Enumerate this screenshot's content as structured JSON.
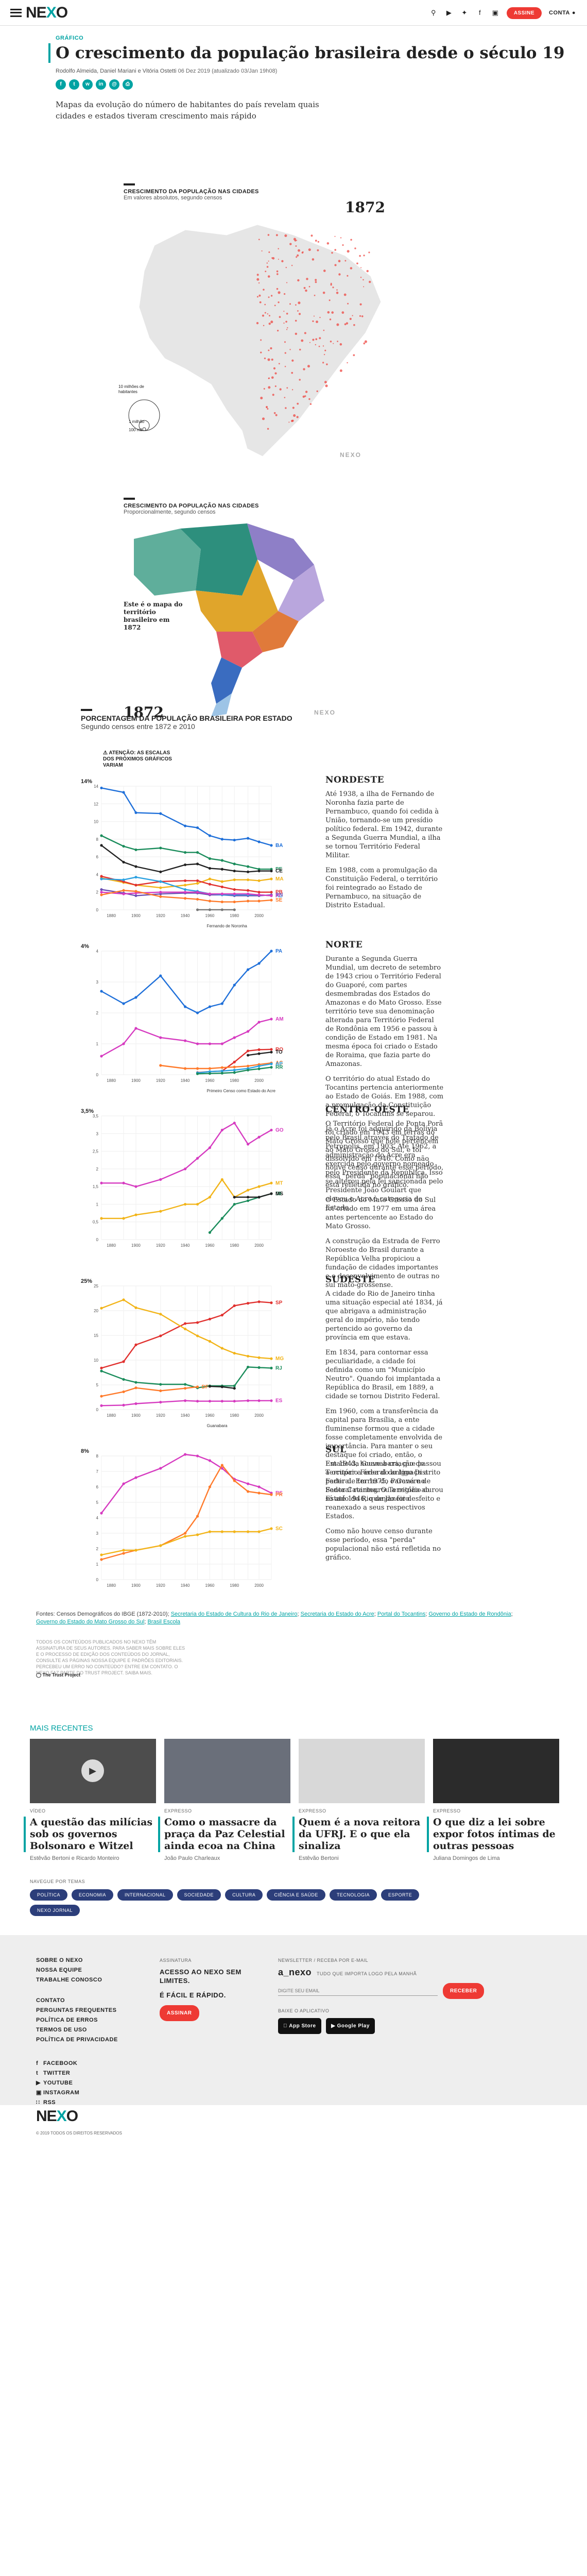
{
  "header": {
    "logo": "NEXO",
    "subscribe": "ASSINE",
    "account": "CONTA"
  },
  "article": {
    "kicker": "GRÁFICO",
    "title": "O crescimento da população brasileira desde o século 19",
    "authors": "Rodolfo Almeida, Daniel Mariani e Vitória Ostetti",
    "date": "06 Dez 2019",
    "updated": "(atualizado 03/Jan 19h08)",
    "lead": "Mapas da evolução do número de habitantes do país revelam quais cidades e estados tiveram crescimento mais rápido"
  },
  "map1": {
    "title": "CRESCIMENTO DA POPULAÇÃO NAS CIDADES",
    "subtitle": "Em valores absolutos, segundo censos",
    "year": "1872",
    "legend": [
      "10 milhões de habitantes",
      "1 milhão",
      "100 mil"
    ],
    "watermark": "NEXO"
  },
  "map2": {
    "title": "CRESCIMENTO DA POPULAÇÃO NAS CIDADES",
    "subtitle": "Proporcionalmente, segundo censos",
    "note": "Este é o mapa do território brasileiro em 1872",
    "year": "1872",
    "watermark": "NEXO",
    "colors": [
      "#5fae9b",
      "#2d8f7d",
      "#8e7fc7",
      "#b9a6dd",
      "#e0a52b",
      "#e07a3a",
      "#e05a6a",
      "#3a6cc0",
      "#9dc4e6"
    ]
  },
  "section": {
    "title": "PORCENTAGEM DA POPULAÇÃO BRASILEIRA POR ESTADO",
    "subtitle": "Segundo censos entre 1872 e 2010",
    "warning": "ATENÇÃO: AS ESCALAS DOS PRÓXIMOS GRÁFICOS VARIAM"
  },
  "chart_data": [
    {
      "type": "line",
      "title": "NORDESTE",
      "x": [
        1872,
        1890,
        1900,
        1920,
        1940,
        1950,
        1960,
        1970,
        1980,
        1991,
        2000,
        2010
      ],
      "ylim": [
        0,
        14
      ],
      "yticks": [
        0,
        2,
        4,
        6,
        8,
        10,
        12,
        14
      ],
      "ymax_label": "14%",
      "series": [
        {
          "name": "BA",
          "color": "#1e6fd9",
          "values": [
            13.8,
            13.3,
            11.0,
            10.9,
            9.5,
            9.3,
            8.4,
            8.0,
            7.9,
            8.1,
            7.7,
            7.3
          ]
        },
        {
          "name": "PE",
          "color": "#1a8c5b",
          "values": [
            8.4,
            7.2,
            6.8,
            7.0,
            6.5,
            6.5,
            5.8,
            5.6,
            5.2,
            4.9,
            4.6,
            4.6
          ]
        },
        {
          "name": "CE",
          "color": "#222222",
          "values": [
            7.3,
            5.4,
            4.9,
            4.3,
            5.1,
            5.2,
            4.7,
            4.6,
            4.4,
            4.3,
            4.4,
            4.4
          ]
        },
        {
          "name": "MA",
          "color": "#f2b418",
          "values": [
            3.6,
            3.1,
            2.8,
            2.5,
            2.8,
            3.0,
            3.5,
            3.2,
            3.4,
            3.4,
            3.3,
            3.5
          ]
        },
        {
          "name": "PB",
          "color": "#e0302e",
          "values": [
            3.8,
            3.2,
            2.8,
            3.2,
            3.3,
            3.3,
            2.9,
            2.6,
            2.3,
            2.2,
            2.0,
            2.0
          ]
        },
        {
          "name": "RN",
          "color": "#6b4fb3",
          "values": [
            2.3,
            1.9,
            1.6,
            1.8,
            1.9,
            1.9,
            1.7,
            1.7,
            1.6,
            1.6,
            1.6,
            1.7
          ]
        },
        {
          "name": "AL",
          "color": "#2aa0e0",
          "values": [
            3.5,
            3.4,
            3.7,
            3.2,
            2.3,
            2.1,
            1.8,
            1.7,
            1.7,
            1.7,
            1.7,
            1.6
          ]
        },
        {
          "name": "PI",
          "color": "#d63ac0",
          "values": [
            2.0,
            1.8,
            1.9,
            2.0,
            2.0,
            2.0,
            1.8,
            1.8,
            1.8,
            1.8,
            1.7,
            1.6
          ]
        },
        {
          "name": "SE",
          "color": "#ff7a2a",
          "values": [
            1.7,
            2.2,
            2.1,
            1.5,
            1.3,
            1.2,
            1.0,
            0.9,
            0.9,
            1.0,
            1.0,
            1.1
          ]
        },
        {
          "name": "Fernando de Noronha",
          "color": "#777777",
          "values": [
            null,
            null,
            null,
            null,
            null,
            0.01,
            0.01,
            0.01,
            0.01,
            null,
            null,
            null
          ]
        }
      ],
      "annotation": "Fernando de Noronha",
      "text": [
        "Até 1938, a ilha de Fernando de Noronha fazia parte de Pernambuco, quando foi cedida à União, tornando-se um presídio político federal. Em 1942, durante a Segunda Guerra Mundial, a ilha se tornou Território Federal Militar.",
        "Em 1988, com a promulgação da Constituição Federal, o território foi reintegrado ao Estado de Pernambuco, na situação de Distrito Estadual."
      ]
    },
    {
      "type": "line",
      "title": "NORTE",
      "x": [
        1872,
        1890,
        1900,
        1920,
        1940,
        1950,
        1960,
        1970,
        1980,
        1991,
        2000,
        2010
      ],
      "ylim": [
        0,
        4
      ],
      "yticks": [
        0,
        1,
        2,
        3,
        4
      ],
      "ymax_label": "4%",
      "series": [
        {
          "name": "PA",
          "color": "#1e6fd9",
          "values": [
            2.7,
            2.3,
            2.5,
            3.2,
            2.2,
            2.0,
            2.2,
            2.3,
            2.9,
            3.4,
            3.6,
            4.0
          ]
        },
        {
          "name": "AM",
          "color": "#d63ac0",
          "values": [
            0.6,
            1.0,
            1.5,
            1.2,
            1.1,
            1.0,
            1.0,
            1.0,
            1.2,
            1.4,
            1.7,
            1.8
          ]
        },
        {
          "name": "RO",
          "color": "#e0302e",
          "values": [
            null,
            null,
            null,
            null,
            null,
            0.07,
            0.1,
            0.12,
            0.41,
            0.77,
            0.81,
            0.82
          ]
        },
        {
          "name": "TO",
          "color": "#222222",
          "values": [
            null,
            null,
            null,
            null,
            null,
            null,
            null,
            null,
            null,
            0.63,
            0.68,
            0.73
          ]
        },
        {
          "name": "AC",
          "color": "#ff7a2a",
          "values": [
            null,
            null,
            null,
            0.3,
            0.2,
            0.2,
            0.2,
            0.23,
            0.25,
            0.28,
            0.33,
            0.38
          ]
        },
        {
          "name": "AP",
          "color": "#2aa0e0",
          "values": [
            null,
            null,
            null,
            null,
            null,
            0.06,
            0.1,
            0.12,
            0.15,
            0.2,
            0.28,
            0.35
          ]
        },
        {
          "name": "RR",
          "color": "#1a8c5b",
          "values": [
            null,
            null,
            null,
            null,
            null,
            0.03,
            0.04,
            0.05,
            0.07,
            0.15,
            0.19,
            0.24
          ]
        }
      ],
      "annotation": "Primeiro Censo como Estado do Acre",
      "text": [
        "Durante a Segunda Guerra Mundial, um decreto de setembro de 1943 criou o Território Federal do Guaporé, com partes desmembradas dos Estados do Amazonas e do Mato Grosso. Esse território teve sua denominação alterada para Território Federal de Rondônia em 1956 e passou à condição de Estado em 1981. Na mesma época foi criado o Estado de Roraima, que fazia parte do Amazonas.",
        "O território do atual Estado do Tocantins pertencia anteriormente ao Estado de Goiás. Em 1988, com a promulgação da Constituição Federal, o Tocantins se separou.",
        "Já o Acre foi adquirido da Bolívia pelo Brasil através do Tratado de Petrópolis, em 1903. Até 1962, a administração do Acre era exercida pelo governo nomeado pelo Presidente da República. Isso se alterou pela lei sancionada pelo Presidente João Goulart que elevou o Acre à categoria de Estado."
      ]
    },
    {
      "type": "line",
      "title": "CENTRO-OESTE",
      "x": [
        1872,
        1890,
        1900,
        1920,
        1940,
        1950,
        1960,
        1970,
        1980,
        1991,
        2000,
        2010
      ],
      "ylim": [
        0,
        3.5
      ],
      "yticks": [
        0,
        0.5,
        1,
        1.5,
        2,
        2.5,
        3,
        3.5
      ],
      "ymax_label": "3,5%",
      "series": [
        {
          "name": "GO",
          "color": "#d63ac0",
          "values": [
            1.6,
            1.6,
            1.5,
            1.7,
            2.0,
            2.3,
            2.6,
            3.1,
            3.3,
            2.7,
            2.9,
            3.1
          ]
        },
        {
          "name": "MT",
          "color": "#f2b418",
          "values": [
            0.6,
            0.6,
            0.7,
            0.8,
            1.0,
            1.0,
            1.2,
            1.7,
            1.2,
            1.4,
            1.5,
            1.6
          ]
        },
        {
          "name": "DF",
          "color": "#1a8c5b",
          "values": [
            null,
            null,
            null,
            null,
            null,
            null,
            0.2,
            0.6,
            1.0,
            1.1,
            1.2,
            1.3
          ]
        },
        {
          "name": "MS",
          "color": "#222222",
          "values": [
            null,
            null,
            null,
            null,
            null,
            null,
            null,
            null,
            1.2,
            1.2,
            1.2,
            1.3
          ]
        }
      ],
      "text": [
        "O Território Federal de Ponta Porã foi criado em 1943 em terras do Mato Grosso que hoje pertencem ao Mato Grosso do Sul, e foi dissolvido em 1946. Como não houve censo durante esse período, essa \"perda\" populacional não está refletida no gráfico.",
        "O Estado do Mato Grosso do Sul foi criado em 1977 em uma área antes pertencente ao Estado do Mato Grosso.",
        "A construção da Estrada de Ferro Noroeste do Brasil durante a República Velha propiciou a fundação de cidades importantes e o desenvolvimento de outras no sul mato-grossense."
      ]
    },
    {
      "type": "line",
      "title": "SUDESTE",
      "x": [
        1872,
        1890,
        1900,
        1920,
        1940,
        1950,
        1960,
        1970,
        1980,
        1991,
        2000,
        2010
      ],
      "ylim": [
        0,
        25
      ],
      "yticks": [
        0,
        5,
        10,
        15,
        20,
        25
      ],
      "ymax_label": "25%",
      "series": [
        {
          "name": "SP",
          "color": "#e0302e",
          "values": [
            8.4,
            9.7,
            13.1,
            14.9,
            17.4,
            17.6,
            18.3,
            19.1,
            21.0,
            21.5,
            21.8,
            21.6
          ]
        },
        {
          "name": "MG",
          "color": "#f2b418",
          "values": [
            20.5,
            22.2,
            20.6,
            19.3,
            16.3,
            14.9,
            13.8,
            12.4,
            11.4,
            10.8,
            10.5,
            10.3
          ]
        },
        {
          "name": "RJ",
          "color": "#1a8c5b",
          "values": [
            7.8,
            6.1,
            5.5,
            5.1,
            5.1,
            4.4,
            4.8,
            4.8,
            4.8,
            8.6,
            8.5,
            8.4
          ]
        },
        {
          "name": "ES",
          "color": "#d63ac0",
          "values": [
            0.8,
            0.9,
            1.2,
            1.5,
            1.8,
            1.7,
            1.7,
            1.7,
            1.7,
            1.8,
            1.8,
            1.8
          ]
        },
        {
          "name": "Guanabara",
          "color": "#222222",
          "values": [
            null,
            null,
            null,
            null,
            null,
            null,
            4.7,
            4.6,
            4.3,
            null,
            null,
            null
          ]
        },
        {
          "name": "DF",
          "color": "#ff7a2a",
          "values": [
            2.7,
            3.6,
            4.4,
            3.8,
            4.3,
            4.6,
            null,
            null,
            null,
            null,
            null,
            null
          ]
        }
      ],
      "annotation": "Guanabara",
      "text": [
        "A cidade do Rio de Janeiro tinha uma situação especial até 1834, já que abrigava a administração geral do império, não tendo pertencido ao governo da província em que estava.",
        "Em 1834, para contornar essa peculiaridade, a cidade foi definida como um \"Município Neutro\". Quando foi implantada a República do Brasil, em 1889, a cidade se tornou Distrito Federal.",
        "Em 1960, com a transferência da capital para Brasília, a ente fluminense formou que a cidade fosse completamente envolvida de importância. Para manter o seu destaque foi criado, então, o Estado da Guanabara, que passou a ocupar a área do antigo Distrito Federal. Em 1975, o Governo Federal reintegrou a região ao Estado do Rio de Janeiro."
      ]
    },
    {
      "type": "line",
      "title": "SUL",
      "x": [
        1872,
        1890,
        1900,
        1920,
        1940,
        1950,
        1960,
        1970,
        1980,
        1991,
        2000,
        2010
      ],
      "ylim": [
        0,
        8
      ],
      "yticks": [
        0,
        1,
        2,
        3,
        4,
        5,
        6,
        7,
        8
      ],
      "ymax_label": "8%",
      "series": [
        {
          "name": "RS",
          "color": "#d63ac0",
          "values": [
            4.3,
            6.2,
            6.6,
            7.2,
            8.1,
            8.0,
            7.7,
            7.2,
            6.5,
            6.2,
            6.0,
            5.6
          ]
        },
        {
          "name": "PR",
          "color": "#ff7a2a",
          "values": [
            1.3,
            1.7,
            1.9,
            2.2,
            3.0,
            4.1,
            6.0,
            7.4,
            6.4,
            5.7,
            5.6,
            5.5
          ]
        },
        {
          "name": "SC",
          "color": "#f2b418",
          "values": [
            1.6,
            1.9,
            1.9,
            2.2,
            2.8,
            2.9,
            3.1,
            3.1,
            3.1,
            3.1,
            3.1,
            3.3
          ]
        }
      ],
      "text": [
        "Em 1943, houve a criação do Território Federal do Iguaçu a partir de terras do Paraná e de Santa Catarina. O Território durou só até 1946, quando foi desfeito e reanexado a seus respectivos Estados.",
        "Como não houve censo durante esse período, essa \"perda\" populacional não está refletida no gráfico."
      ]
    }
  ],
  "sources": {
    "label": "Fontes:",
    "text": "Censos Demográficos do IBGE (1872-2010);",
    "links": [
      "Secretaria do Estado de Cultura do Rio de Janeiro",
      "Secretaria do Estado do Acre",
      "Portal do Tocantins",
      "Governo do Estado de Rondônia",
      "Governo do Estado do Mato Grosso do Sul",
      "Brasil Escola"
    ],
    "fine": "TODOS OS CONTEÚDOS PUBLICADOS NO NEXO TÊM ASSINATURA DE SEUS AUTORES. PARA SABER MAIS SOBRE ELES E O PROCESSO DE EDIÇÃO DOS CONTEÚDOS DO JORNAL, CONSULTE AS PÁGINAS NOSSA EQUIPE E PADRÕES EDITORIAIS. PERCEBEU UM ERRO NO CONTEÚDO? ENTRE EM CONTATO. O NEXO FAZ PARTE DO TRUST PROJECT. SAIBA MAIS.",
    "trust": "The Trust Project"
  },
  "more": {
    "heading": "MAIS RECENTES",
    "cards": [
      {
        "tag": "VÍDEO",
        "title": "A questão das milícias sob os governos Bolsonaro e Witzel",
        "author": "Estêvão Bertoni e Ricardo Monteiro",
        "img": "#4d4d4d"
      },
      {
        "tag": "EXPRESSO",
        "title": "Como o massacre da praça da Paz Celestial ainda ecoa na China",
        "author": "João Paulo Charleaux",
        "img": "#6a6f7a"
      },
      {
        "tag": "EXPRESSO",
        "title": "Quem é a nova reitora da UFRJ. E o que ela sinaliza",
        "author": "Estêvão Bertoni",
        "img": "#d8d8d8"
      },
      {
        "tag": "EXPRESSO",
        "title": "O que diz a lei sobre expor fotos íntimas de outras pessoas",
        "author": "Juliana Domingos de Lima",
        "img": "#2b2b2b"
      }
    ],
    "tags_label": "NAVEGUE POR TEMAS",
    "tags": [
      "POLÍTICA",
      "ECONOMIA",
      "INTERNACIONAL",
      "SOCIEDADE",
      "CULTURA",
      "CIÊNCIA E SAÚDE",
      "TECNOLOGIA",
      "ESPORTE",
      "NEXO JORNAL"
    ]
  },
  "footer": {
    "col1": [
      "SOBRE O NEXO",
      "NOSSA EQUIPE",
      "TRABALHE CONOSCO"
    ],
    "col1b": [
      "CONTATO",
      "PERGUNTAS FREQUENTES",
      "POLÍTICA DE ERROS",
      "TERMOS DE USO",
      "POLÍTICA DE PRIVACIDADE"
    ],
    "social": [
      "FACEBOOK",
      "TWITTER",
      "YOUTUBE",
      "INSTAGRAM",
      "RSS"
    ],
    "sub_label": "ASSINATURA",
    "sub_text": "ACESSO AO NEXO SEM LIMITES.",
    "sub_text2": "É FÁCIL E RÁPIDO.",
    "sub_button": "ASSINAR",
    "news_label": "NEWSLETTER / RECEBA POR E-MAIL",
    "news_name": "a_nexo",
    "news_desc": "TUDO QUE IMPORTA LOGO PELA MANHÃ",
    "news_placeholder": "DIGITE SEU EMAIL",
    "news_button": "RECEBER",
    "app_label": "BAIXE O APLICATIVO",
    "app_store": "App Store",
    "google_play": "Google Play",
    "logo": "NEXO",
    "copyright": "© 2019 TODOS OS DIREITOS RESERVADOS"
  }
}
